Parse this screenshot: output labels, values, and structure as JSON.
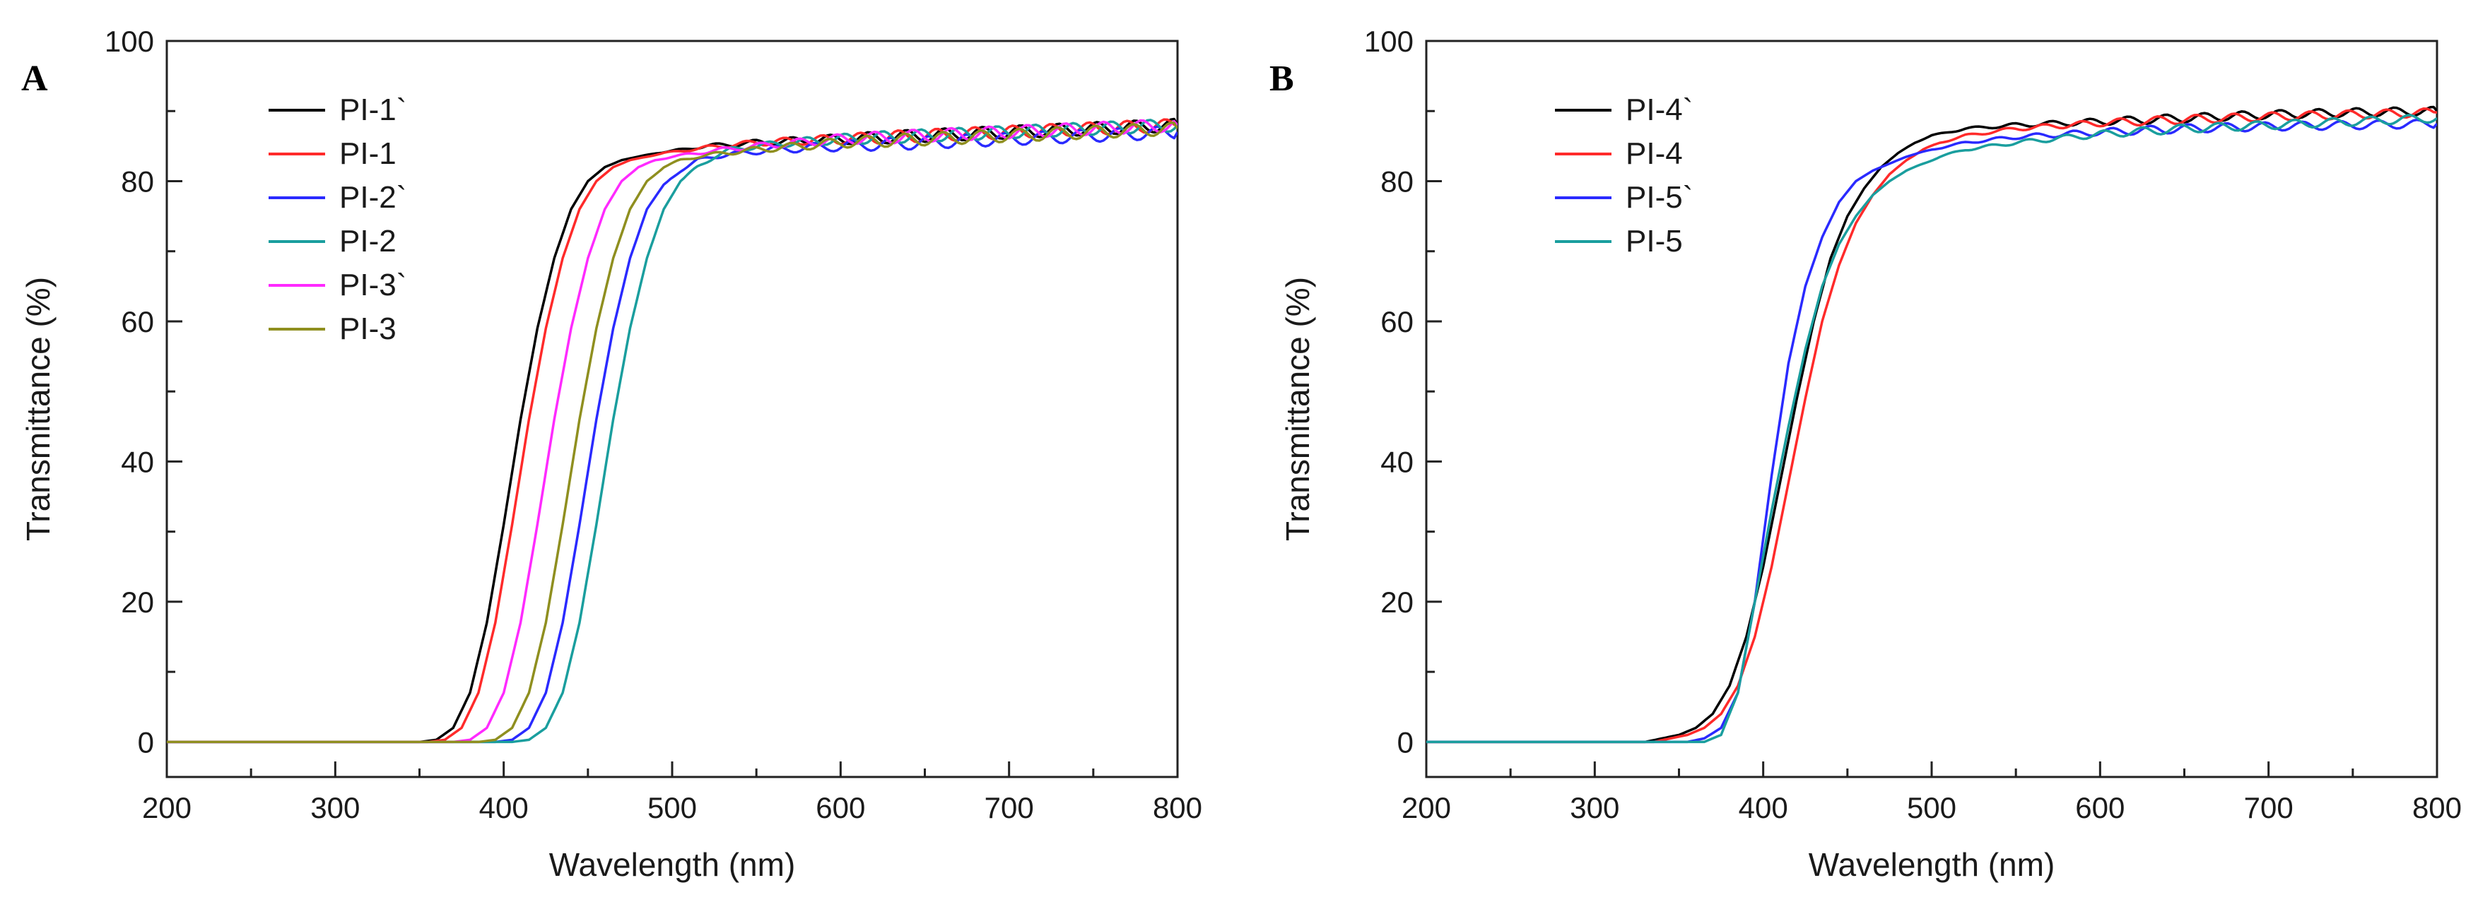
{
  "chart_data": [
    {
      "type": "line",
      "panel_label": "A",
      "title": "",
      "xlabel": "Wavelength (nm)",
      "ylabel": "Transmittance (%)",
      "xlim": [
        200,
        800
      ],
      "ylim": [
        -5,
        100
      ],
      "xticks": [
        "200",
        "300",
        "400",
        "500",
        "600",
        "700",
        "800"
      ],
      "yticks": [
        "0",
        "20",
        "40",
        "60",
        "80",
        "100"
      ],
      "legend_position": "top-left",
      "series": [
        {
          "name": "PI-1`",
          "color": "#000000",
          "x": [
            200,
            350,
            360,
            370,
            380,
            390,
            400,
            410,
            420,
            430,
            440,
            450,
            460,
            470,
            480,
            490,
            500,
            520,
            550,
            600,
            650,
            700,
            750,
            800
          ],
          "y": [
            0,
            0,
            0.3,
            2,
            7,
            17,
            31,
            46,
            59,
            69,
            76,
            80,
            82,
            83,
            83.5,
            84,
            84.3,
            85,
            85.5,
            86,
            86.5,
            87,
            87.5,
            88
          ]
        },
        {
          "name": "PI-1",
          "color": "#ff2a2a",
          "x": [
            200,
            355,
            365,
            375,
            385,
            395,
            405,
            415,
            425,
            435,
            445,
            455,
            465,
            475,
            485,
            495,
            505,
            520,
            550,
            600,
            650,
            700,
            750,
            800
          ],
          "y": [
            0,
            0,
            0.3,
            2,
            7,
            17,
            31,
            46,
            59,
            69,
            76,
            80,
            82,
            83,
            83.5,
            84,
            84.3,
            84.8,
            85.5,
            86,
            86.5,
            87,
            87.5,
            88
          ]
        },
        {
          "name": "PI-2`",
          "color": "#2a2aff",
          "x": [
            200,
            395,
            405,
            415,
            425,
            435,
            445,
            455,
            465,
            475,
            485,
            495,
            505,
            515,
            525,
            540,
            560,
            600,
            650,
            700,
            750,
            800
          ],
          "y": [
            0,
            0,
            0.3,
            2,
            7,
            17,
            31,
            46,
            59,
            69,
            76,
            79.5,
            81.5,
            83,
            83.5,
            84,
            84.5,
            85,
            85.5,
            86,
            86.5,
            87
          ]
        },
        {
          "name": "PI-2",
          "color": "#1a9e9e",
          "x": [
            200,
            405,
            415,
            425,
            435,
            445,
            455,
            465,
            475,
            485,
            495,
            505,
            515,
            525,
            535,
            550,
            570,
            600,
            650,
            700,
            750,
            800
          ],
          "y": [
            0,
            0,
            0.3,
            2,
            7,
            17,
            31,
            46,
            59,
            69,
            76,
            80,
            82,
            83.5,
            84.5,
            85,
            85.5,
            86,
            86.5,
            87,
            87.5,
            88
          ]
        },
        {
          "name": "PI-3`",
          "color": "#ff2aff",
          "x": [
            200,
            370,
            380,
            390,
            400,
            410,
            420,
            430,
            440,
            450,
            460,
            470,
            480,
            490,
            500,
            515,
            530,
            550,
            600,
            650,
            700,
            750,
            800
          ],
          "y": [
            0,
            0,
            0.3,
            2,
            7,
            17,
            31,
            46,
            59,
            69,
            76,
            80,
            82,
            83,
            83.5,
            84,
            84.5,
            85,
            86,
            86.5,
            87,
            87.5,
            88
          ]
        },
        {
          "name": "PI-3",
          "color": "#8f8f1f",
          "x": [
            200,
            385,
            395,
            405,
            415,
            425,
            435,
            445,
            455,
            465,
            475,
            485,
            495,
            505,
            515,
            530,
            550,
            600,
            650,
            700,
            750,
            800
          ],
          "y": [
            0,
            0,
            0.3,
            2,
            7,
            17,
            31,
            46,
            59,
            69,
            76,
            80,
            82,
            83,
            83.5,
            84,
            84.5,
            85.5,
            86,
            86.5,
            87,
            87.5
          ]
        }
      ]
    },
    {
      "type": "line",
      "panel_label": "B",
      "title": "",
      "xlabel": "Wavelength (nm)",
      "ylabel": "Transmittance (%)",
      "xlim": [
        200,
        800
      ],
      "ylim": [
        -5,
        100
      ],
      "xticks": [
        "200",
        "300",
        "400",
        "500",
        "600",
        "700",
        "800"
      ],
      "yticks": [
        "0",
        "20",
        "40",
        "60",
        "80",
        "100"
      ],
      "legend_position": "top-left",
      "series": [
        {
          "name": "PI-4`",
          "color": "#000000",
          "x": [
            200,
            330,
            340,
            350,
            360,
            370,
            380,
            390,
            400,
            410,
            420,
            430,
            440,
            450,
            460,
            470,
            480,
            490,
            500,
            520,
            550,
            600,
            650,
            700,
            750,
            800
          ],
          "y": [
            0,
            0,
            0.5,
            1,
            2,
            4,
            8,
            15,
            25,
            37,
            49,
            60,
            69,
            75,
            79,
            82,
            84,
            85.5,
            86.5,
            87.5,
            88,
            88.5,
            89,
            89.5,
            89.8,
            90
          ]
        },
        {
          "name": "PI-4",
          "color": "#ff2a2a",
          "x": [
            200,
            335,
            345,
            355,
            365,
            375,
            385,
            395,
            405,
            415,
            425,
            435,
            445,
            455,
            465,
            475,
            485,
            495,
            505,
            520,
            550,
            600,
            650,
            700,
            750,
            800
          ],
          "y": [
            0,
            0,
            0.5,
            1,
            2,
            4,
            8,
            15,
            25,
            37,
            49,
            60,
            68,
            74,
            78,
            81,
            83,
            84.5,
            85.5,
            86.5,
            87.5,
            88.3,
            88.8,
            89.2,
            89.5,
            89.8
          ]
        },
        {
          "name": "PI-5`",
          "color": "#2a2aff",
          "x": [
            200,
            355,
            365,
            375,
            385,
            395,
            405,
            415,
            425,
            435,
            445,
            455,
            465,
            475,
            485,
            500,
            520,
            550,
            600,
            650,
            700,
            750,
            800
          ],
          "y": [
            0,
            0,
            0.5,
            2,
            7,
            20,
            38,
            54,
            65,
            72,
            77,
            80,
            81.5,
            82.5,
            83.5,
            84.5,
            85.5,
            86.3,
            87,
            87.5,
            87.8,
            88,
            88.2
          ]
        },
        {
          "name": "PI-5",
          "color": "#1a9e9e",
          "x": [
            200,
            365,
            375,
            385,
            395,
            405,
            415,
            425,
            435,
            445,
            455,
            465,
            475,
            485,
            495,
            505,
            520,
            550,
            600,
            650,
            700,
            750,
            800
          ],
          "y": [
            0,
            0,
            1,
            7,
            20,
            33,
            45,
            56,
            65,
            71,
            75,
            78,
            80,
            81.5,
            82.5,
            83.5,
            84.5,
            85.5,
            86.7,
            87.5,
            88,
            88.5,
            89
          ]
        }
      ]
    }
  ]
}
